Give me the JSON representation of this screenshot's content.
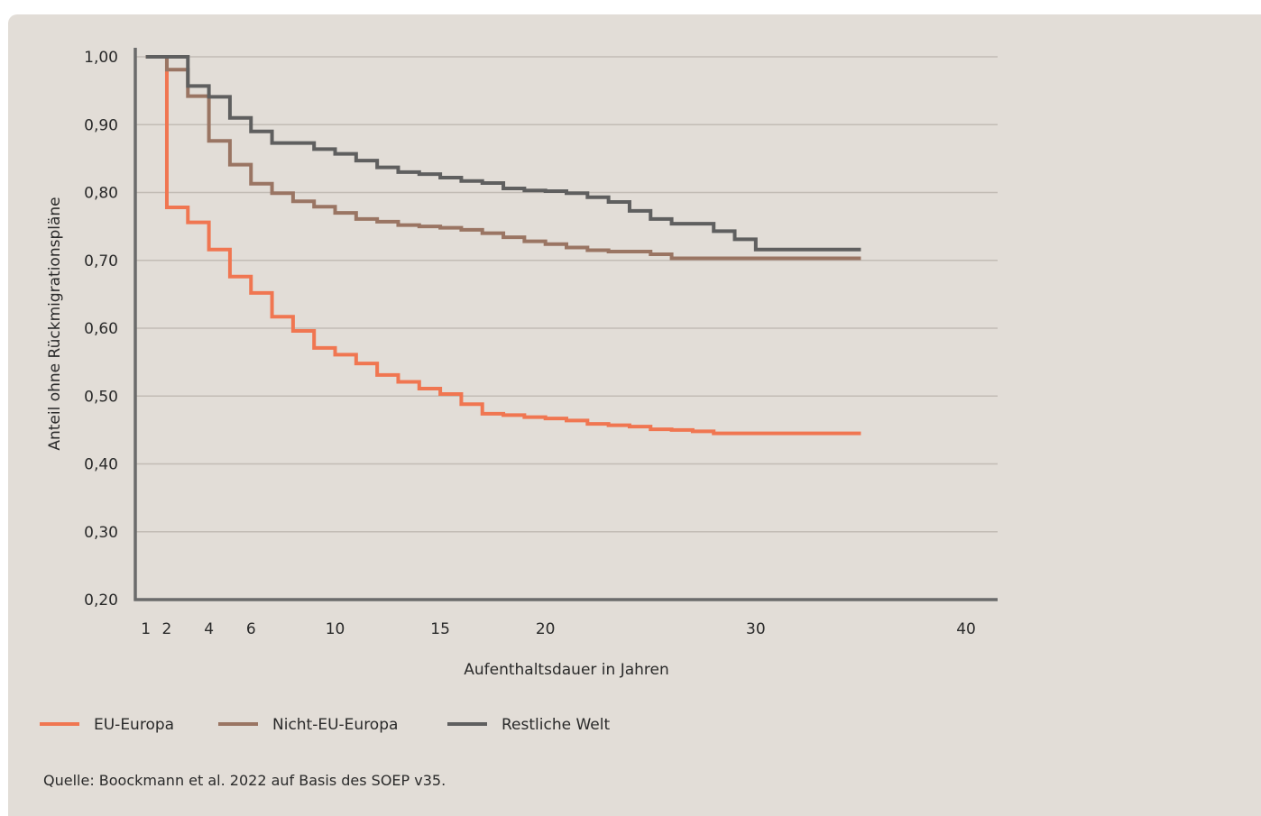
{
  "colors": {
    "background": "#e2ddd7",
    "grid": "#c2bcb5",
    "axis": "#6b6b6b",
    "eu_europa": "#f07651",
    "nicht_eu_europa": "#9a7563",
    "restliche_welt": "#5f5f5f"
  },
  "chart_data": {
    "type": "line",
    "title": "",
    "xlabel": "Aufenthaltsdauer in Jahren",
    "ylabel": "Anteil ohne Rückmigrationspläne",
    "xlim": [
      0.5,
      41.5
    ],
    "ylim": [
      0.2,
      1.0
    ],
    "x_ticks": [
      1,
      2,
      4,
      6,
      10,
      15,
      20,
      30,
      40
    ],
    "x_tick_labels": [
      "1",
      "2",
      "4",
      "6",
      "10",
      "15",
      "20",
      "30",
      "40"
    ],
    "y_ticks": [
      0.2,
      0.3,
      0.4,
      0.5,
      0.6,
      0.7,
      0.8,
      0.9,
      1.0
    ],
    "y_tick_labels": [
      "0,20",
      "0,30",
      "0,40",
      "0,50",
      "0,60",
      "0,70",
      "0,80",
      "0,90",
      "1,00"
    ],
    "grid": true,
    "step": true,
    "legend_position": "bottom",
    "series": [
      {
        "name": "EU-Europa",
        "color": "#f07651",
        "points": [
          [
            1,
            1.0
          ],
          [
            2,
            0.778
          ],
          [
            3,
            0.756
          ],
          [
            4,
            0.716
          ],
          [
            5,
            0.676
          ],
          [
            6,
            0.652
          ],
          [
            7,
            0.617
          ],
          [
            8,
            0.596
          ],
          [
            9,
            0.571
          ],
          [
            10,
            0.561
          ],
          [
            11,
            0.548
          ],
          [
            12,
            0.531
          ],
          [
            13,
            0.521
          ],
          [
            14,
            0.511
          ],
          [
            15,
            0.503
          ],
          [
            16,
            0.488
          ],
          [
            17,
            0.474
          ],
          [
            18,
            0.472
          ],
          [
            19,
            0.469
          ],
          [
            20,
            0.467
          ],
          [
            21,
            0.464
          ],
          [
            22,
            0.459
          ],
          [
            23,
            0.457
          ],
          [
            24,
            0.455
          ],
          [
            25,
            0.451
          ],
          [
            26,
            0.45
          ],
          [
            27,
            0.448
          ],
          [
            28,
            0.445
          ],
          [
            35,
            0.445
          ]
        ]
      },
      {
        "name": "Nicht-EU-Europa",
        "color": "#9a7563",
        "points": [
          [
            1,
            1.0
          ],
          [
            2,
            0.981
          ],
          [
            3,
            0.942
          ],
          [
            4,
            0.876
          ],
          [
            5,
            0.841
          ],
          [
            6,
            0.813
          ],
          [
            7,
            0.799
          ],
          [
            8,
            0.787
          ],
          [
            9,
            0.779
          ],
          [
            10,
            0.77
          ],
          [
            11,
            0.761
          ],
          [
            12,
            0.757
          ],
          [
            13,
            0.752
          ],
          [
            14,
            0.75
          ],
          [
            15,
            0.748
          ],
          [
            16,
            0.745
          ],
          [
            17,
            0.74
          ],
          [
            18,
            0.734
          ],
          [
            19,
            0.728
          ],
          [
            20,
            0.724
          ],
          [
            21,
            0.719
          ],
          [
            22,
            0.715
          ],
          [
            23,
            0.713
          ],
          [
            24,
            0.713
          ],
          [
            25,
            0.709
          ],
          [
            26,
            0.703
          ],
          [
            35,
            0.703
          ]
        ]
      },
      {
        "name": "Restliche Welt",
        "color": "#5f5f5f",
        "points": [
          [
            1,
            1.0
          ],
          [
            3,
            0.957
          ],
          [
            4,
            0.941
          ],
          [
            5,
            0.91
          ],
          [
            6,
            0.89
          ],
          [
            7,
            0.873
          ],
          [
            8,
            0.873
          ],
          [
            9,
            0.864
          ],
          [
            10,
            0.857
          ],
          [
            11,
            0.847
          ],
          [
            12,
            0.837
          ],
          [
            13,
            0.83
          ],
          [
            14,
            0.827
          ],
          [
            15,
            0.822
          ],
          [
            16,
            0.817
          ],
          [
            17,
            0.814
          ],
          [
            18,
            0.806
          ],
          [
            19,
            0.803
          ],
          [
            20,
            0.802
          ],
          [
            21,
            0.799
          ],
          [
            22,
            0.793
          ],
          [
            23,
            0.786
          ],
          [
            24,
            0.773
          ],
          [
            25,
            0.761
          ],
          [
            26,
            0.754
          ],
          [
            27,
            0.754
          ],
          [
            28,
            0.743
          ],
          [
            29,
            0.731
          ],
          [
            30,
            0.716
          ],
          [
            35,
            0.716
          ]
        ]
      }
    ]
  },
  "source": "Quelle: Boockmann et al. 2022 auf Basis des SOEP v35."
}
